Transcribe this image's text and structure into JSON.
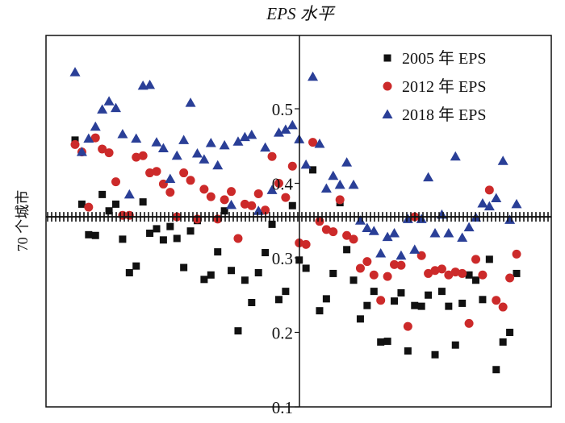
{
  "chart_data": {
    "type": "scatter",
    "title": "EPS 水平",
    "ylabel": "70 个城市",
    "xlabel": "",
    "ylim": [
      0.1,
      0.6
    ],
    "xlim": [
      0,
      70
    ],
    "reference_line_y": 0.355,
    "grid": false,
    "legend_position": "top-right",
    "y_ticks": [
      "0.1",
      "0.2",
      "0.3",
      "0.4",
      "0.5"
    ],
    "series": [
      {
        "name": "2005 年 EPS",
        "marker": "square",
        "color": "#111111",
        "points": [
          [
            1,
            0.458
          ],
          [
            2,
            0.372
          ],
          [
            3,
            0.331
          ],
          [
            4,
            0.33
          ],
          [
            5,
            0.385
          ],
          [
            6,
            0.363
          ],
          [
            7,
            0.372
          ],
          [
            8,
            0.325
          ],
          [
            9,
            0.28
          ],
          [
            10,
            0.289
          ],
          [
            11,
            0.375
          ],
          [
            12,
            0.333
          ],
          [
            13,
            0.339
          ],
          [
            14,
            0.324
          ],
          [
            15,
            0.342
          ],
          [
            16,
            0.326
          ],
          [
            17,
            0.287
          ],
          [
            18,
            0.336
          ],
          [
            19,
            0.35
          ],
          [
            20,
            0.271
          ],
          [
            21,
            0.277
          ],
          [
            22,
            0.308
          ],
          [
            23,
            0.363
          ],
          [
            24,
            0.283
          ],
          [
            25,
            0.202
          ],
          [
            26,
            0.27
          ],
          [
            27,
            0.24
          ],
          [
            28,
            0.28
          ],
          [
            29,
            0.307
          ],
          [
            30,
            0.345
          ],
          [
            31,
            0.244
          ],
          [
            32,
            0.255
          ],
          [
            33,
            0.37
          ],
          [
            34,
            0.297
          ],
          [
            35,
            0.286
          ],
          [
            36,
            0.418
          ],
          [
            37,
            0.229
          ],
          [
            38,
            0.245
          ],
          [
            39,
            0.279
          ],
          [
            40,
            0.374
          ],
          [
            41,
            0.311
          ],
          [
            42,
            0.27
          ],
          [
            43,
            0.218
          ],
          [
            44,
            0.236
          ],
          [
            45,
            0.255
          ],
          [
            46,
            0.187
          ],
          [
            47,
            0.188
          ],
          [
            48,
            0.242
          ],
          [
            49,
            0.253
          ],
          [
            50,
            0.175
          ],
          [
            51,
            0.236
          ],
          [
            52,
            0.235
          ],
          [
            53,
            0.25
          ],
          [
            54,
            0.17
          ],
          [
            55,
            0.255
          ],
          [
            56,
            0.235
          ],
          [
            57,
            0.183
          ],
          [
            58,
            0.239
          ],
          [
            59,
            0.277
          ],
          [
            60,
            0.27
          ],
          [
            61,
            0.244
          ],
          [
            62,
            0.298
          ],
          [
            63,
            0.15
          ],
          [
            64,
            0.187
          ],
          [
            65,
            0.2
          ],
          [
            66,
            0.279
          ]
        ]
      },
      {
        "name": "2012 年 EPS",
        "marker": "circle",
        "color": "#cc2a2a",
        "points": [
          [
            1,
            0.452
          ],
          [
            2,
            0.442
          ],
          [
            3,
            0.368
          ],
          [
            4,
            0.461
          ],
          [
            5,
            0.446
          ],
          [
            6,
            0.441
          ],
          [
            7,
            0.402
          ],
          [
            8,
            0.357
          ],
          [
            9,
            0.357
          ],
          [
            10,
            0.435
          ],
          [
            11,
            0.437
          ],
          [
            12,
            0.414
          ],
          [
            13,
            0.416
          ],
          [
            14,
            0.399
          ],
          [
            15,
            0.388
          ],
          [
            16,
            0.355
          ],
          [
            17,
            0.414
          ],
          [
            18,
            0.404
          ],
          [
            19,
            0.352
          ],
          [
            20,
            0.392
          ],
          [
            21,
            0.382
          ],
          [
            22,
            0.352
          ],
          [
            23,
            0.378
          ],
          [
            24,
            0.389
          ],
          [
            25,
            0.326
          ],
          [
            26,
            0.372
          ],
          [
            27,
            0.37
          ],
          [
            28,
            0.386
          ],
          [
            29,
            0.364
          ],
          [
            30,
            0.436
          ],
          [
            31,
            0.4
          ],
          [
            32,
            0.381
          ],
          [
            33,
            0.423
          ],
          [
            34,
            0.32
          ],
          [
            35,
            0.318
          ],
          [
            36,
            0.455
          ],
          [
            37,
            0.349
          ],
          [
            38,
            0.338
          ],
          [
            39,
            0.335
          ],
          [
            40,
            0.378
          ],
          [
            41,
            0.33
          ],
          [
            42,
            0.325
          ],
          [
            43,
            0.286
          ],
          [
            44,
            0.295
          ],
          [
            45,
            0.277
          ],
          [
            46,
            0.243
          ],
          [
            47,
            0.275
          ],
          [
            48,
            0.291
          ],
          [
            49,
            0.29
          ],
          [
            50,
            0.208
          ],
          [
            51,
            0.355
          ],
          [
            52,
            0.303
          ],
          [
            53,
            0.279
          ],
          [
            54,
            0.283
          ],
          [
            55,
            0.285
          ],
          [
            56,
            0.277
          ],
          [
            57,
            0.281
          ],
          [
            58,
            0.279
          ],
          [
            59,
            0.212
          ],
          [
            60,
            0.298
          ],
          [
            61,
            0.277
          ],
          [
            62,
            0.391
          ],
          [
            63,
            0.243
          ],
          [
            64,
            0.234
          ],
          [
            65,
            0.273
          ],
          [
            66,
            0.305
          ]
        ]
      },
      {
        "name": "2018 年 EPS",
        "marker": "triangle",
        "color": "#2a3f97",
        "points": [
          [
            1,
            0.549
          ],
          [
            2,
            0.442
          ],
          [
            3,
            0.46
          ],
          [
            4,
            0.476
          ],
          [
            5,
            0.499
          ],
          [
            6,
            0.51
          ],
          [
            7,
            0.501
          ],
          [
            8,
            0.466
          ],
          [
            9,
            0.385
          ],
          [
            10,
            0.46
          ],
          [
            11,
            0.531
          ],
          [
            12,
            0.532
          ],
          [
            13,
            0.455
          ],
          [
            14,
            0.447
          ],
          [
            15,
            0.406
          ],
          [
            16,
            0.437
          ],
          [
            17,
            0.458
          ],
          [
            18,
            0.508
          ],
          [
            19,
            0.44
          ],
          [
            20,
            0.432
          ],
          [
            21,
            0.454
          ],
          [
            22,
            0.424
          ],
          [
            23,
            0.451
          ],
          [
            24,
            0.371
          ],
          [
            25,
            0.456
          ],
          [
            26,
            0.462
          ],
          [
            27,
            0.465
          ],
          [
            28,
            0.363
          ],
          [
            29,
            0.448
          ],
          [
            30,
            0.391
          ],
          [
            31,
            0.468
          ],
          [
            32,
            0.472
          ],
          [
            33,
            0.478
          ],
          [
            34,
            0.459
          ],
          [
            35,
            0.425
          ],
          [
            36,
            0.543
          ],
          [
            37,
            0.453
          ],
          [
            38,
            0.393
          ],
          [
            39,
            0.41
          ],
          [
            40,
            0.398
          ],
          [
            41,
            0.428
          ],
          [
            42,
            0.398
          ],
          [
            43,
            0.35
          ],
          [
            44,
            0.34
          ],
          [
            45,
            0.336
          ],
          [
            46,
            0.306
          ],
          [
            47,
            0.328
          ],
          [
            48,
            0.333
          ],
          [
            49,
            0.303
          ],
          [
            50,
            0.352
          ],
          [
            51,
            0.311
          ],
          [
            52,
            0.352
          ],
          [
            53,
            0.408
          ],
          [
            54,
            0.333
          ],
          [
            55,
            0.358
          ],
          [
            56,
            0.333
          ],
          [
            57,
            0.436
          ],
          [
            58,
            0.327
          ],
          [
            59,
            0.341
          ],
          [
            60,
            0.354
          ],
          [
            61,
            0.373
          ],
          [
            62,
            0.369
          ],
          [
            63,
            0.38
          ],
          [
            64,
            0.43
          ],
          [
            65,
            0.351
          ],
          [
            66,
            0.372
          ]
        ]
      }
    ]
  }
}
